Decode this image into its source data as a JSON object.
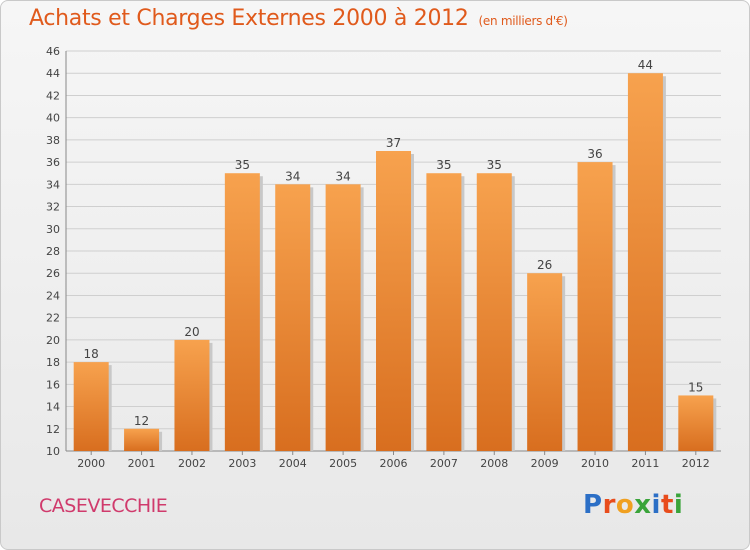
{
  "header": {
    "title": "Achats et Charges Externes 2000 à 2012",
    "subtitle": "(en milliers d'€)"
  },
  "footer": {
    "commune": "CASEVECCHIE",
    "logo_text": "Proxiti"
  },
  "colors": {
    "title": "#e05a1c",
    "commune": "#d03a6c",
    "bar_light": "#f7a24e",
    "bar_dark": "#d9701f",
    "logo": [
      "#2c6fc6",
      "#e84c1c",
      "#f0a020",
      "#3aa43a",
      "#2c6fc6",
      "#e84c1c",
      "#3aa43a"
    ]
  },
  "chart_data": {
    "type": "bar",
    "categories": [
      "2000",
      "2001",
      "2002",
      "2003",
      "2004",
      "2005",
      "2006",
      "2007",
      "2008",
      "2009",
      "2010",
      "2011",
      "2012"
    ],
    "values": [
      18,
      12,
      20,
      35,
      34,
      34,
      37,
      35,
      35,
      26,
      36,
      44,
      15
    ],
    "yticks": [
      10,
      12,
      14,
      16,
      18,
      20,
      22,
      24,
      26,
      28,
      30,
      32,
      34,
      36,
      38,
      40,
      42,
      44,
      46
    ],
    "ylim": [
      10,
      46
    ],
    "grid": true,
    "data_labels": true
  }
}
